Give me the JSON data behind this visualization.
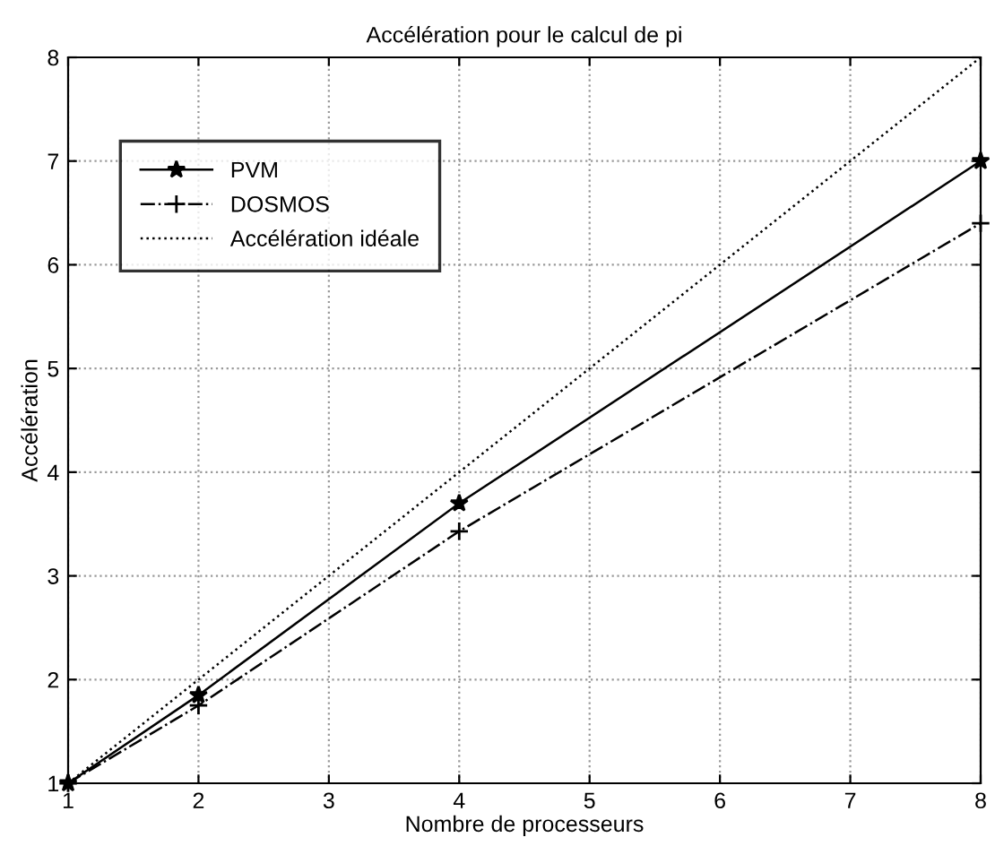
{
  "chart_data": {
    "type": "line",
    "title": "Accélération pour le calcul de pi",
    "xlabel": "Nombre de processeurs",
    "ylabel": "Accélération",
    "x": [
      1,
      2,
      4,
      8
    ],
    "series": [
      {
        "name": "PVM",
        "color": "#000000",
        "values": [
          1,
          1.85,
          3.7,
          7.0
        ],
        "marker": "star",
        "line_style": "solid"
      },
      {
        "name": "DOSMOS",
        "color": "#000000",
        "values": [
          1,
          1.75,
          3.43,
          6.4
        ],
        "marker": "cross",
        "line_style": "dashdot"
      },
      {
        "name": "Accélération idéale",
        "color": "#000000",
        "x": [
          1,
          8
        ],
        "values": [
          1,
          8
        ],
        "marker": "none",
        "line_style": "dotted"
      }
    ],
    "xlim": [
      1,
      8
    ],
    "xticks": [
      1,
      2,
      3,
      4,
      5,
      6,
      7,
      8
    ],
    "ylim": [
      1,
      8
    ],
    "yticks": [
      1,
      2,
      3,
      4,
      5,
      6,
      7,
      8
    ],
    "grid": true,
    "legend": "top left"
  }
}
